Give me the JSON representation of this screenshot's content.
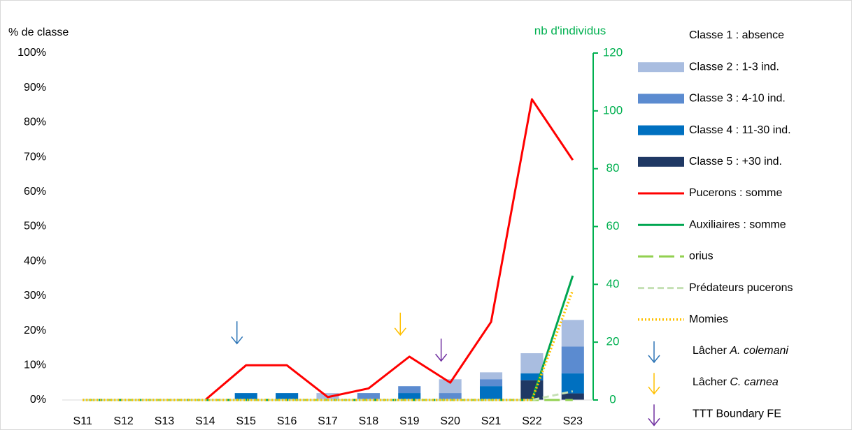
{
  "chart_data": {
    "type": "bar_line",
    "y_label": "% de classe",
    "y2_label": "nb d'individus",
    "categories": [
      "S11",
      "S12",
      "S13",
      "S14",
      "S15",
      "S16",
      "S17",
      "S18",
      "S19",
      "S20",
      "S21",
      "S22",
      "S23"
    ],
    "ylim": [
      0,
      100
    ],
    "yticks": [
      {
        "value": 0,
        "label": "0%"
      },
      {
        "value": 10,
        "label": "10%"
      },
      {
        "value": 20,
        "label": "20%"
      },
      {
        "value": 30,
        "label": "30%"
      },
      {
        "value": 40,
        "label": "40%"
      },
      {
        "value": 50,
        "label": "50%"
      },
      {
        "value": 60,
        "label": "60%"
      },
      {
        "value": 70,
        "label": "70%"
      },
      {
        "value": 80,
        "label": "80%"
      },
      {
        "value": 90,
        "label": "90%"
      },
      {
        "value": 100,
        "label": "100%"
      }
    ],
    "y2lim": [
      0,
      120
    ],
    "y2ticks": [
      0,
      20,
      40,
      60,
      80,
      100,
      120
    ],
    "y2_color": "#00b050",
    "bar_series": [
      {
        "name": "Classe 5 : +30 ind.",
        "color": "#1f3864",
        "values": [
          0,
          0,
          0,
          0,
          0,
          0,
          0,
          0,
          0,
          0,
          0,
          5.7,
          1.9
        ]
      },
      {
        "name": "Classe 4 : 11-30 ind.",
        "color": "#0070c0",
        "values": [
          0,
          0,
          0,
          0,
          2,
          2,
          0,
          0,
          2,
          0,
          4,
          2,
          5.8
        ]
      },
      {
        "name": "Classe 3 : 4-10 ind.",
        "color": "#5b8bd0",
        "values": [
          0,
          0,
          0,
          0,
          0,
          0,
          0,
          2,
          2,
          2,
          2,
          0,
          7.7
        ]
      },
      {
        "name": "Classe 2 : 1-3 ind.",
        "color": "#a9bde0",
        "values": [
          0,
          0,
          0,
          0,
          0,
          0,
          2,
          0,
          0,
          4,
          2,
          5.8,
          7.7
        ]
      },
      {
        "name": "Classe 1 : absence",
        "color": "#ffffff",
        "values": [
          100,
          100,
          100,
          100,
          98,
          98,
          98,
          98,
          96,
          94,
          92,
          86.5,
          76.9
        ]
      }
    ],
    "line_series": [
      {
        "name": "Pucerons : somme",
        "color": "#ff0000",
        "style": "solid",
        "axis": "y2",
        "values": [
          0,
          0,
          0,
          0,
          12,
          12,
          1,
          4,
          15,
          6,
          27,
          104,
          83
        ]
      },
      {
        "name": "Auxiliaires : somme",
        "color": "#00a651",
        "style": "solid",
        "axis": "y2",
        "values": [
          0,
          0,
          0,
          0,
          0,
          0,
          0,
          0,
          0,
          0,
          0,
          0,
          43
        ]
      },
      {
        "name": "orius",
        "color": "#92d050",
        "style": "longdash",
        "axis": "y2",
        "values": [
          0,
          0,
          0,
          0,
          0,
          0,
          0,
          0,
          0,
          0,
          0,
          0,
          0
        ]
      },
      {
        "name": "Prédateurs pucerons",
        "color": "#c5e0b4",
        "style": "dash",
        "axis": "y2",
        "values": [
          0,
          0,
          0,
          0,
          0,
          0,
          0,
          0,
          0,
          0,
          0,
          0,
          3
        ]
      },
      {
        "name": "Momies",
        "color": "#ffc000",
        "style": "dot",
        "axis": "y2",
        "values": [
          0,
          0,
          0,
          0,
          0,
          0,
          0,
          0,
          0,
          0,
          0,
          0,
          38
        ]
      }
    ],
    "legend_order": [
      "Classe 1 : absence",
      "Classe 2 : 1-3 ind.",
      "Classe 3 : 4-10 ind.",
      "Classe 4 : 11-30 ind.",
      "Classe 5 : +30 ind.",
      "Pucerons : somme",
      "Auxiliaires : somme",
      "orius",
      "Prédateurs pucerons",
      "Momies"
    ],
    "events": [
      {
        "label": "Lâcher",
        "label_italic": "A. colemani",
        "category": "S15",
        "color": "#2e75b6"
      },
      {
        "label": "Lâcher",
        "label_italic": "C. carnea",
        "category": "S19",
        "color": "#ffc000"
      },
      {
        "label": "TTT Boundary FE",
        "category": "S20",
        "color": "#7030a0"
      }
    ]
  }
}
